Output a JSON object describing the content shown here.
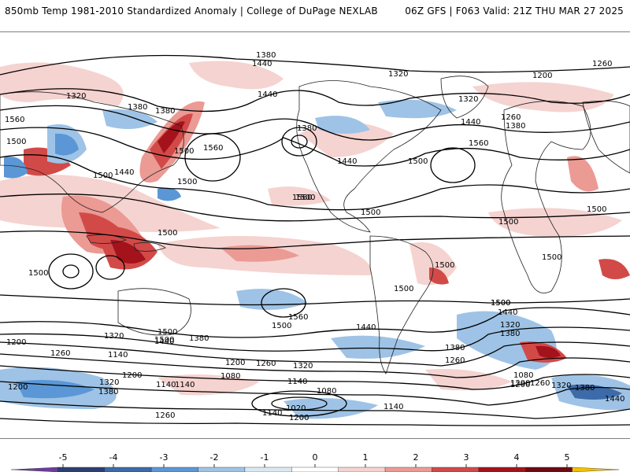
{
  "header": {
    "left": "850mb Temp 1981-2010 Standardized Anomaly | College of DuPage NEXLAB",
    "right": "06Z GFS | F063 Valid: 21Z THU MAR 27 2025"
  },
  "colorbar": {
    "ticks": [
      "-5",
      "-4",
      "-3",
      "-2",
      "-1",
      "0",
      "1",
      "2",
      "3",
      "4",
      "5"
    ],
    "colors": [
      "#6a3d9a",
      "#2b3f73",
      "#3d6aa8",
      "#5b97d6",
      "#9ec3e6",
      "#dbe8f4",
      "#ffffff",
      "#f5d3d0",
      "#eb9a94",
      "#d24a48",
      "#a4121c",
      "#6e0a10",
      "#f2c100"
    ]
  },
  "contour_labels": [
    "1380",
    "1440",
    "1260",
    "1200",
    "1320",
    "1320",
    "1380",
    "1380",
    "1440",
    "1320",
    "1560",
    "1500",
    "1500",
    "1500",
    "1440",
    "1500",
    "1560",
    "1380",
    "1440",
    "1500",
    "1560",
    "1440",
    "1260",
    "1380",
    "1500",
    "1560",
    "1500",
    "1500",
    "1500",
    "1500",
    "1500",
    "1500",
    "1500",
    "1500",
    "1500",
    "1500",
    "1560",
    "1500",
    "1500",
    "1440",
    "1380",
    "1320",
    "1200",
    "1440",
    "1380",
    "1320",
    "1500",
    "1440",
    "1260",
    "1380",
    "1200",
    "1260",
    "1320",
    "1260",
    "1140",
    "1200",
    "1080",
    "1140",
    "1080",
    "1200",
    "1140",
    "1200",
    "1320",
    "1380",
    "1140",
    "1020",
    "1200",
    "1260",
    "1140",
    "1080",
    "1140",
    "1200",
    "1260",
    "1320",
    "1380",
    "1440"
  ]
}
